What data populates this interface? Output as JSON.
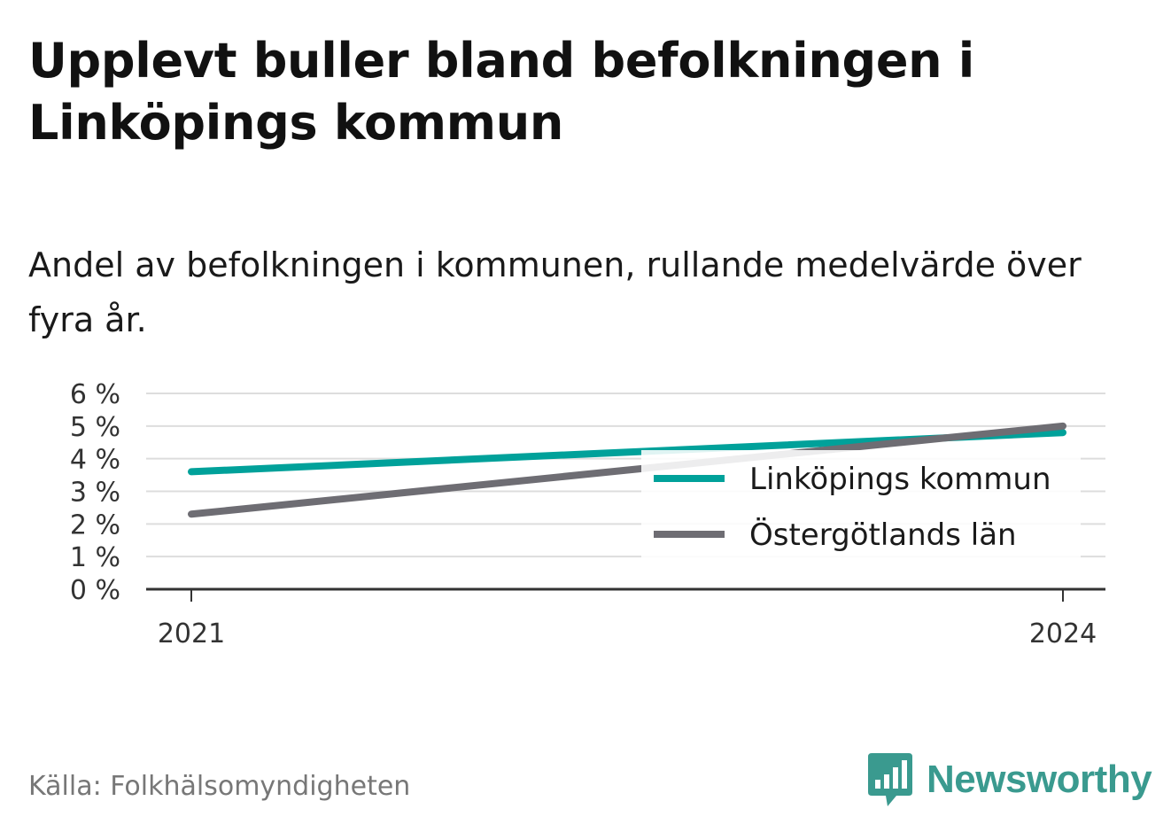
{
  "title": "Upplevt buller bland befolkningen i Linköpings kommun",
  "subtitle": "Andel av befolkningen i kommunen, rullande medelvärde över fyra år.",
  "source": "Källa: Folkhälsomyndigheten",
  "brand": {
    "name": "Newsworthy",
    "icon": "newsworthy-logo-icon",
    "color": "#3a9a8f"
  },
  "chart_data": {
    "type": "line",
    "x": [
      2021,
      2024
    ],
    "x_tick_labels": [
      "2021",
      "2024"
    ],
    "y_ticks": [
      0,
      1,
      2,
      3,
      4,
      5,
      6
    ],
    "y_tick_labels": [
      "0 %",
      "1 %",
      "2 %",
      "3 %",
      "4 %",
      "5 %",
      "6 %"
    ],
    "ylim": [
      0,
      6
    ],
    "grid": true,
    "legend_position": "bottom-right",
    "series": [
      {
        "name": "Linköpings kommun",
        "values": [
          3.6,
          4.8
        ],
        "color": "#00a19a"
      },
      {
        "name": "Östergötlands län",
        "values": [
          2.3,
          5.0
        ],
        "color": "#6e6d73"
      }
    ]
  }
}
